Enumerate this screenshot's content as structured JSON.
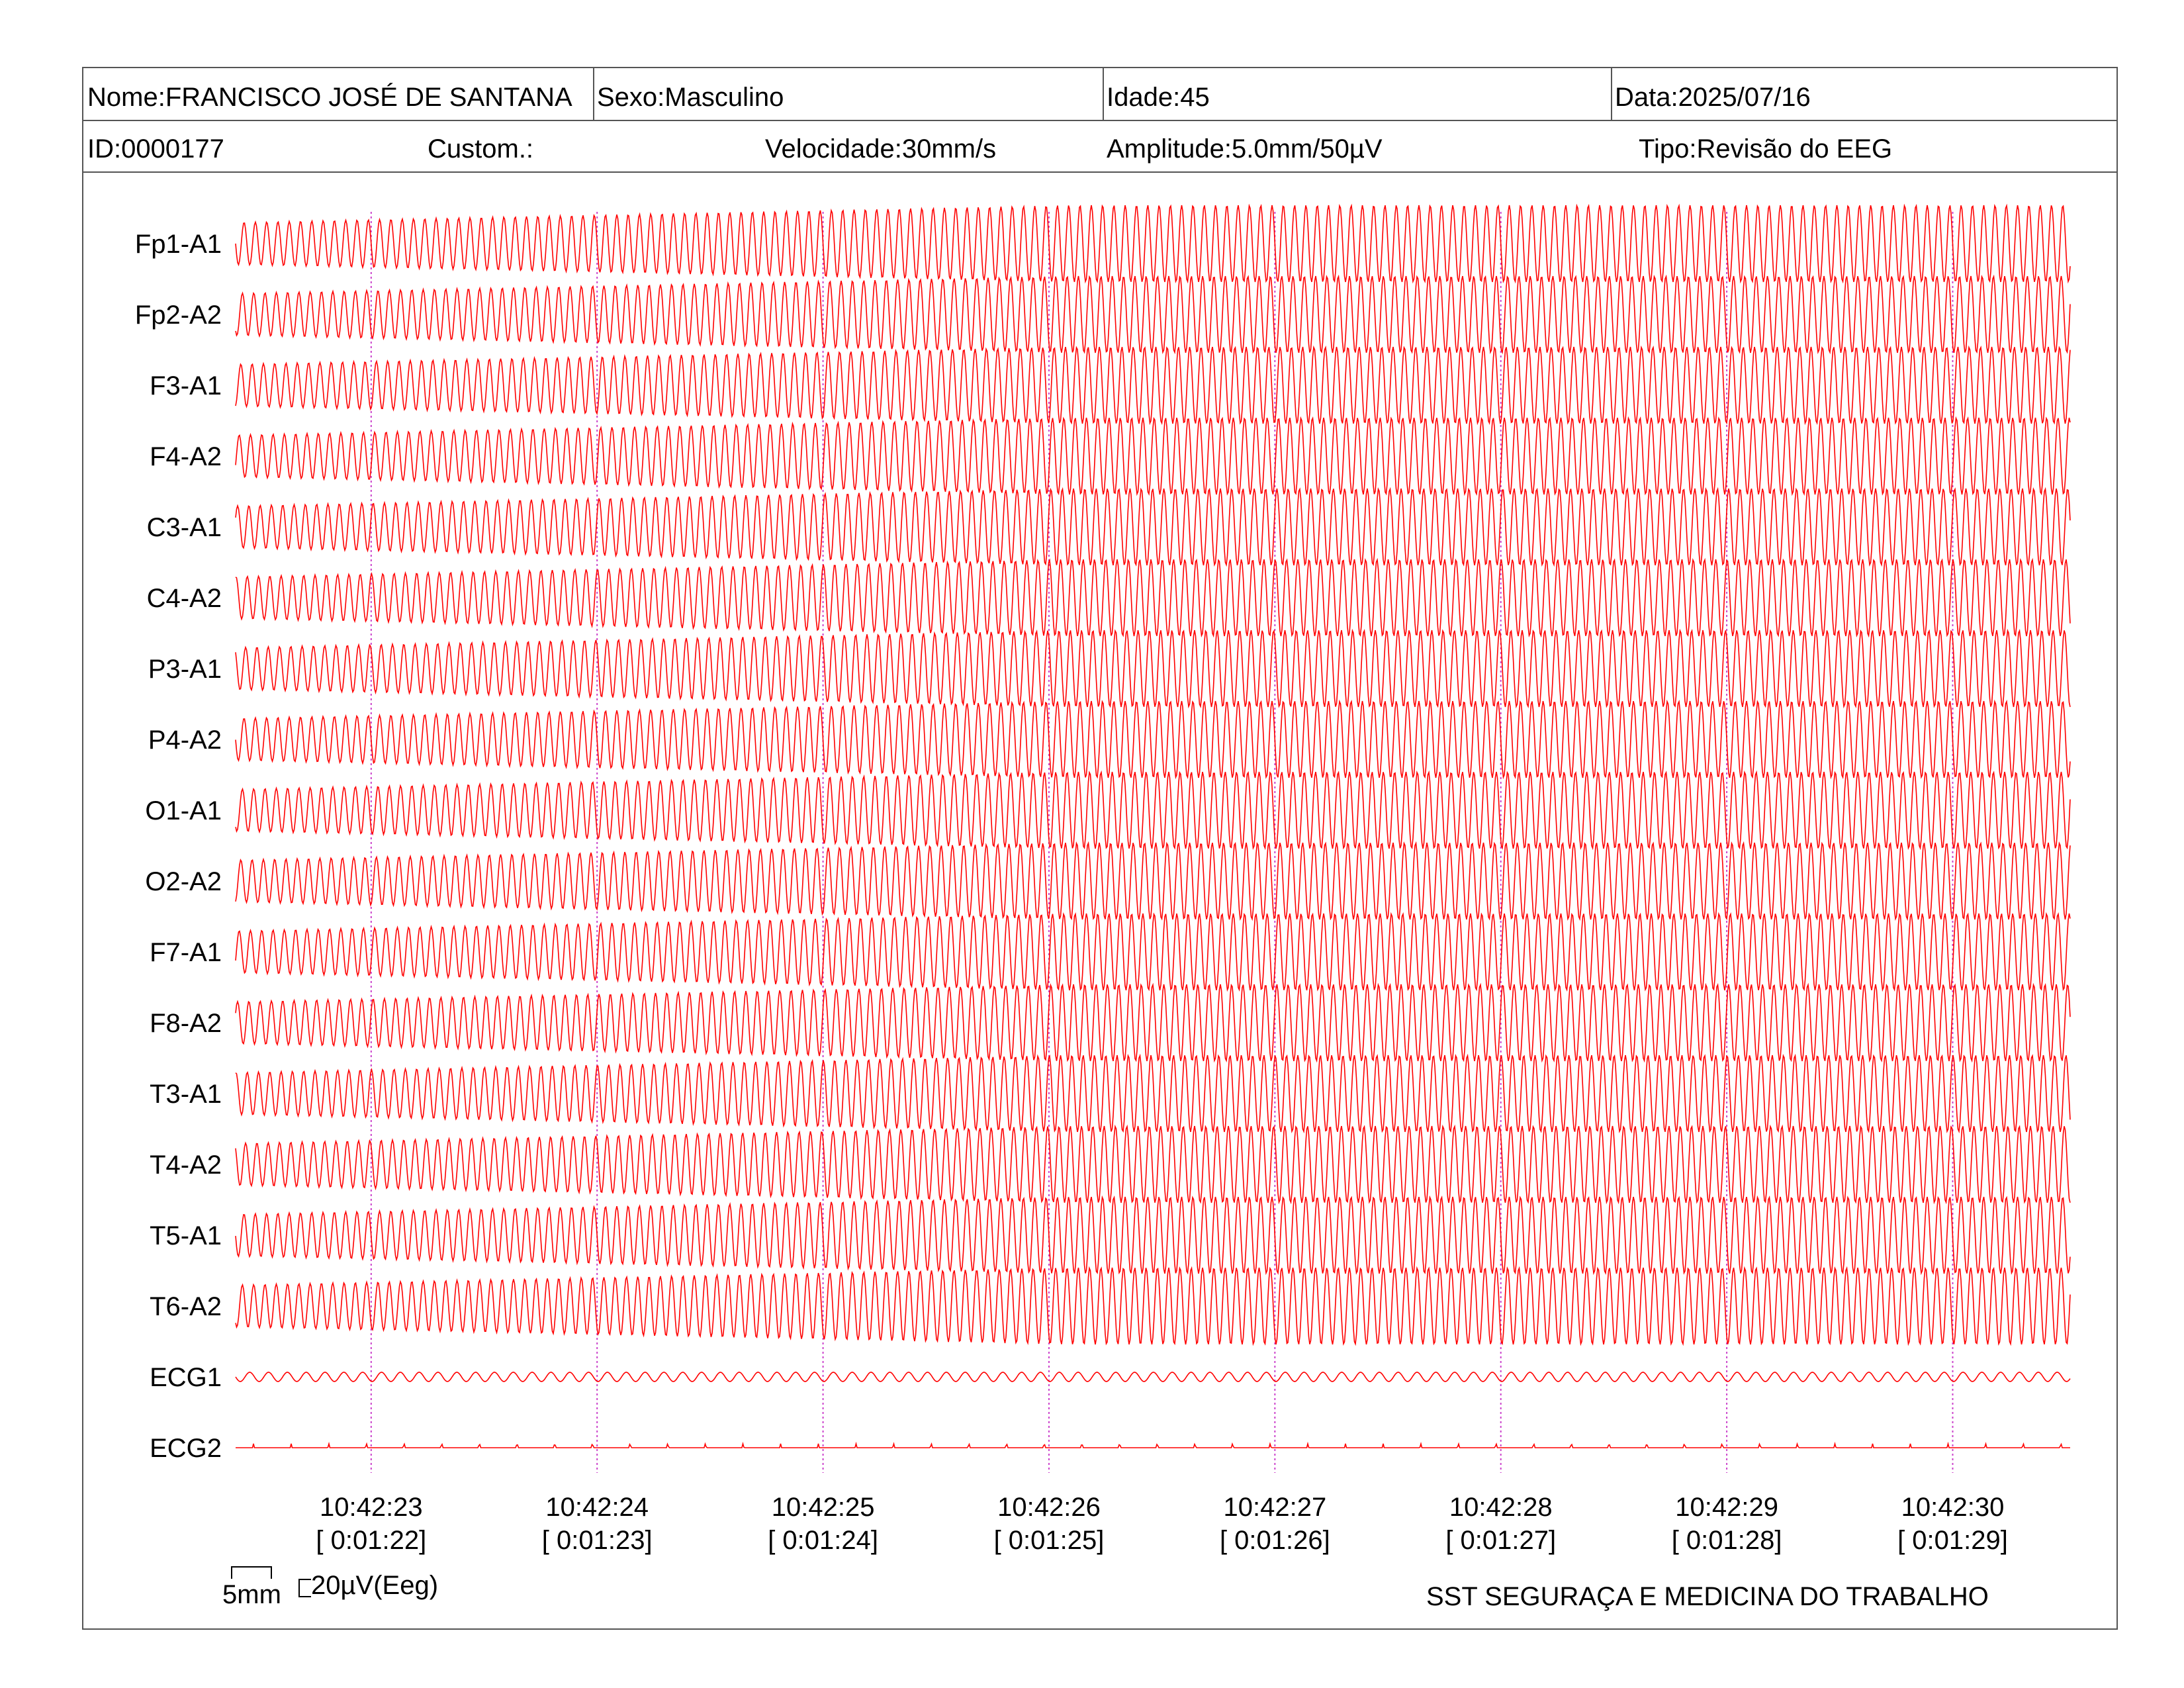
{
  "header": {
    "nome": "Nome:FRANCISCO JOSÉ DE SANTANA",
    "sexo": "Sexo:Masculino",
    "idade": "Idade:45",
    "data": "Data:2025/07/16",
    "id": "ID:0000177",
    "custom": "Custom.:",
    "velocidade": "Velocidade:30mm/s",
    "amplitude": "Amplitude:5.0mm/50µV",
    "tipo": "Tipo:Revisão do EEG"
  },
  "chart_data": {
    "type": "line",
    "title": "",
    "channels": [
      "Fp1-A1",
      "Fp2-A2",
      "F3-A1",
      "F4-A2",
      "C3-A1",
      "C4-A2",
      "P3-A1",
      "P4-A2",
      "O1-A1",
      "O2-A2",
      "F7-A1",
      "F8-A2",
      "T3-A1",
      "T4-A2",
      "T5-A1",
      "T6-A2",
      "ECG1",
      "ECG2"
    ],
    "time_ticks": [
      {
        "clock": "10:42:23",
        "elapsed": "[ 0:01:22]"
      },
      {
        "clock": "10:42:24",
        "elapsed": "[ 0:01:23]"
      },
      {
        "clock": "10:42:25",
        "elapsed": "[ 0:01:24]"
      },
      {
        "clock": "10:42:26",
        "elapsed": "[ 0:01:25]"
      },
      {
        "clock": "10:42:27",
        "elapsed": "[ 0:01:26]"
      },
      {
        "clock": "10:42:28",
        "elapsed": "[ 0:01:27]"
      },
      {
        "clock": "10:42:29",
        "elapsed": "[ 0:01:28]"
      },
      {
        "clock": "10:42:30",
        "elapsed": "[ 0:01:29]"
      }
    ],
    "x_range_seconds": [
      0,
      8.12
    ],
    "first_tick_at_seconds": 0.6,
    "eeg_cycles_per_second": 20,
    "eeg_amplitude_start": 0.55,
    "eeg_amplitude_end": 1.0,
    "ecg1_cycles_per_second": 12,
    "ecg2_beats_per_second": 6,
    "trace_color": "#ff0000",
    "marker_color": "#cc44cc",
    "scale_bar": {
      "time": "5mm",
      "amplitude": "20µV(Eeg)"
    }
  },
  "footer": {
    "organization": "SST SEGURAÇA E MEDICINA DO TRABALHO"
  }
}
